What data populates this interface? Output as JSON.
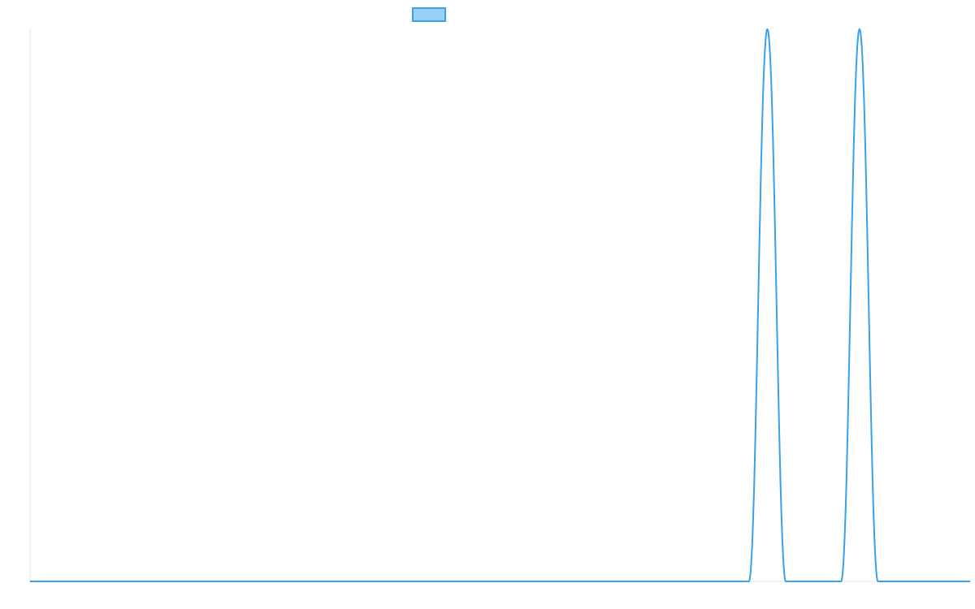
{
  "chart_data": {
    "type": "line",
    "title": "",
    "xlabel": "",
    "ylabel": "",
    "x": [
      0,
      1,
      2,
      3,
      4,
      5,
      6,
      7,
      8,
      9,
      10,
      11,
      12,
      13,
      14,
      15,
      16,
      17,
      18,
      19,
      20,
      21,
      22,
      23,
      24,
      25,
      26,
      27,
      28,
      29,
      30,
      31,
      32,
      33,
      34,
      35,
      36,
      37,
      38,
      39,
      40,
      41,
      42,
      43,
      44,
      45,
      46,
      47,
      48,
      49,
      50,
      51
    ],
    "series": [
      {
        "name": "",
        "color": "#36a2eb",
        "fill": "#9ad0f5",
        "values": [
          0,
          0,
          0,
          0,
          0,
          0,
          0,
          0,
          0,
          0,
          0,
          0,
          0,
          0,
          0,
          0,
          0,
          0,
          0,
          0,
          0,
          0,
          0,
          0,
          0,
          0,
          0,
          0,
          0,
          0,
          0,
          0,
          0,
          0,
          0,
          0,
          0,
          0,
          0,
          0,
          1,
          0,
          0,
          0,
          0,
          1,
          0,
          0,
          0,
          0,
          0,
          0
        ]
      }
    ],
    "xlim": [
      0,
      51
    ],
    "ylim": [
      0,
      1
    ],
    "legend": {
      "position": "top",
      "label": ""
    },
    "grid": false,
    "axis_line_color": "#e6e6e6"
  }
}
